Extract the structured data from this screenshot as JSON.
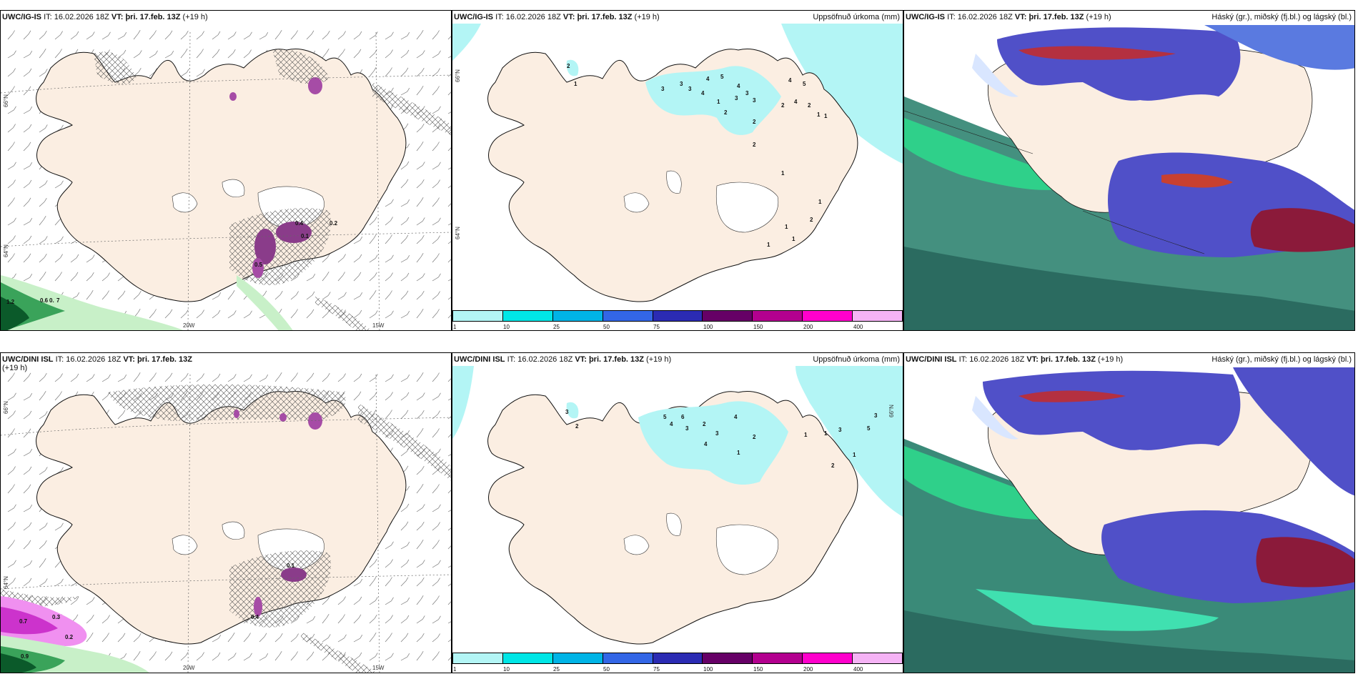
{
  "panels": [
    {
      "id": "p1",
      "model": "UWC/IG-IS",
      "it_label": "IT:",
      "it_value": "16.02.2026 18Z",
      "vt_label": "VT:",
      "vt_value": "þri. 17.feb. 13Z",
      "lead": "(+19 h)",
      "right_label": ""
    },
    {
      "id": "p2",
      "model": "UWC/IG-IS",
      "it_label": "IT:",
      "it_value": "16.02.2026 18Z",
      "vt_label": "VT:",
      "vt_value": "þri. 17.feb. 13Z",
      "lead": "(+19 h)",
      "right_label": "Uppsöfnuð úrkoma (mm)"
    },
    {
      "id": "p3",
      "model": "UWC/IG-IS",
      "it_label": "IT:",
      "it_value": "16.02.2026 18Z",
      "vt_label": "VT:",
      "vt_value": "þri. 17.feb. 13Z",
      "lead": "(+19 h)",
      "right_label": "Háský (gr.), miðský (fj.bl.) og lágský (bl.)"
    },
    {
      "id": "p4",
      "model": "UWC/DINI ISL",
      "it_label": "IT:",
      "it_value": "16.02.2026 18Z",
      "vt_label": "VT:",
      "vt_value": "þri. 17.feb. 13Z",
      "lead": "(+19 h)",
      "right_label": ""
    },
    {
      "id": "p5",
      "model": "UWC/DINI ISL",
      "it_label": "IT:",
      "it_value": "16.02.2026 18Z",
      "vt_label": "VT:",
      "vt_value": "þri. 17.feb. 13Z",
      "lead": "(+19 h)",
      "right_label": "Uppsöfnuð úrkoma (mm)"
    },
    {
      "id": "p6",
      "model": "UWC/DINI ISL",
      "it_label": "IT:",
      "it_value": "16.02.2026 18Z",
      "vt_label": "VT:",
      "vt_value": "þri. 17.feb. 13Z",
      "lead": "(+19 h)",
      "right_label": "Háský (gr.), miðský (fj.bl.) og lágský (bl.)"
    }
  ],
  "graticule": {
    "lat_66": "66°N",
    "lat_64": "64°N",
    "lon_20": "20W",
    "lon_15": "15W"
  },
  "precip_colorbar": {
    "ticks": [
      "1",
      "10",
      "25",
      "50",
      "75",
      "100",
      "150",
      "200",
      "400"
    ],
    "colors": [
      "#b3f5f5",
      "#00e6e6",
      "#00b4e6",
      "#3366e6",
      "#2b2bb3",
      "#660066",
      "#b3008f",
      "#ff00cc",
      "#f5b3f5"
    ]
  },
  "colors": {
    "land": "#fbeee2",
    "sea": "#ffffff",
    "precip_light": "#b3f5f5",
    "wind_barb": "#555555",
    "hatch": "#444444",
    "high_cloud": "#2e8b57",
    "mid_cloud": "#5050c8",
    "low_cloud": "#8b1a3a"
  },
  "p1_values": {
    "labels": [
      "0.6",
      "0.7",
      "1.2",
      "0.5",
      "0.4",
      "0.2",
      "0.1"
    ]
  },
  "p2_values": {
    "labels": [
      "2",
      "1",
      "3",
      "3",
      "3",
      "4",
      "4",
      "5",
      "3",
      "2",
      "1",
      "4",
      "3",
      "3",
      "2",
      "4",
      "2",
      "4",
      "2",
      "1",
      "5",
      "2",
      "1",
      "1",
      "1",
      "2",
      "1",
      "1",
      "1"
    ]
  },
  "p4_values": {
    "labels": [
      "0.7",
      "0.3",
      "0.9",
      "0.2",
      "0.1",
      "0.4"
    ]
  },
  "p5_values": {
    "labels": [
      "3",
      "2",
      "5",
      "4",
      "6",
      "3",
      "2",
      "4",
      "3",
      "4",
      "1",
      "2",
      "1",
      "1",
      "1",
      "2",
      "3",
      "5",
      "3"
    ]
  }
}
